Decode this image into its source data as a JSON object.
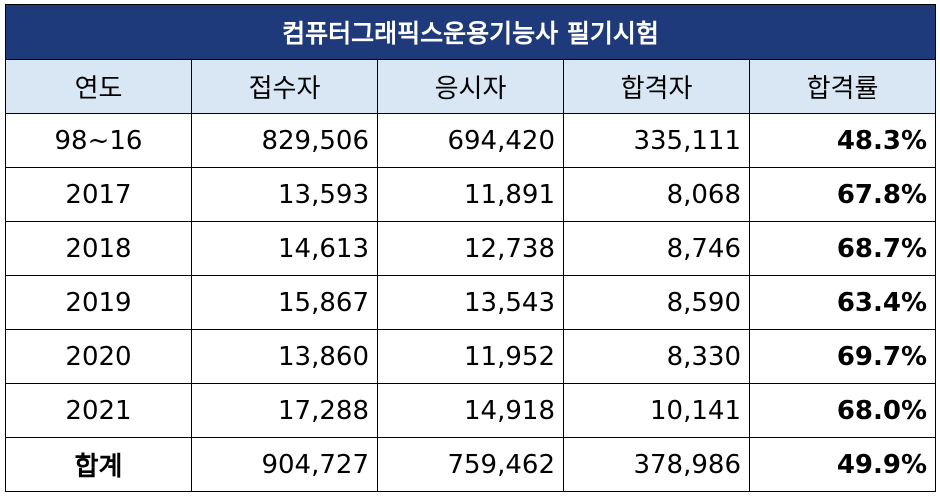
{
  "title": "컴퓨터그래픽스운용기능사 필기시험",
  "headers": [
    "연도",
    "접수자",
    "응시자",
    "합격자",
    "합격률"
  ],
  "rows": [
    {
      "year": "98~16",
      "applicants": "829,506",
      "examinees": "694,420",
      "passed": "335,111",
      "rate": "48.3%"
    },
    {
      "year": "2017",
      "applicants": "13,593",
      "examinees": "11,891",
      "passed": "8,068",
      "rate": "67.8%"
    },
    {
      "year": "2018",
      "applicants": "14,613",
      "examinees": "12,738",
      "passed": "8,746",
      "rate": "68.7%"
    },
    {
      "year": "2019",
      "applicants": "15,867",
      "examinees": "13,543",
      "passed": "8,590",
      "rate": "63.4%"
    },
    {
      "year": "2020",
      "applicants": "13,860",
      "examinees": "11,952",
      "passed": "8,330",
      "rate": "69.7%"
    },
    {
      "year": "2021",
      "applicants": "17,288",
      "examinees": "14,918",
      "passed": "10,141",
      "rate": "68.0%"
    }
  ],
  "total": {
    "year": "합계",
    "applicants": "904,727",
    "examinees": "759,462",
    "passed": "378,986",
    "rate": "49.9%"
  },
  "colors": {
    "title_bg": "#1f3a7a",
    "header_bg": "#d9e7f5"
  }
}
